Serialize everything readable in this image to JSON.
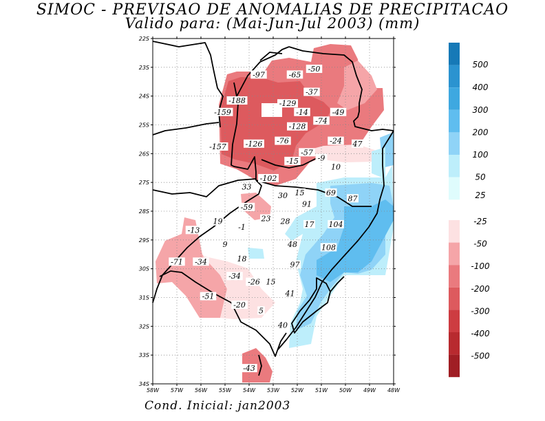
{
  "title": {
    "line1": "SIMOC - PREVISAO DE ANOMALIAS DE PRECIPITACAO",
    "line2": "Valido para: (Mai-Jun-Jul 2003) (mm)"
  },
  "footer": "Cond. Inicial: jan2003",
  "map": {
    "lat_labels": [
      "22S",
      "23S",
      "24S",
      "25S",
      "26S",
      "27S",
      "28S",
      "29S",
      "30S",
      "31S",
      "32S",
      "33S",
      "34S"
    ],
    "lon_labels": [
      "58W",
      "57W",
      "56W",
      "55W",
      "54W",
      "53W",
      "52W",
      "51W",
      "50W",
      "49W",
      "48W"
    ],
    "values": [
      {
        "lon": -53.6,
        "lat": -23.3,
        "text": "-97"
      },
      {
        "lon": -52.1,
        "lat": -23.3,
        "text": "-65"
      },
      {
        "lon": -51.3,
        "lat": -23.1,
        "text": "-50"
      },
      {
        "lon": -51.4,
        "lat": -23.9,
        "text": "-37"
      },
      {
        "lon": -54.5,
        "lat": -24.2,
        "text": "-188"
      },
      {
        "lon": -52.4,
        "lat": -24.3,
        "text": "-129"
      },
      {
        "lon": -55.1,
        "lat": -24.6,
        "text": "-159"
      },
      {
        "lon": -51.8,
        "lat": -24.6,
        "text": "-14"
      },
      {
        "lon": -50.3,
        "lat": -24.6,
        "text": "-49"
      },
      {
        "lon": -51.0,
        "lat": -24.9,
        "text": "-74"
      },
      {
        "lon": -52.0,
        "lat": -25.1,
        "text": "-128"
      },
      {
        "lon": -52.6,
        "lat": -25.6,
        "text": "-76"
      },
      {
        "lon": -50.4,
        "lat": -25.6,
        "text": "-24"
      },
      {
        "lon": -49.5,
        "lat": -25.7,
        "text": "47"
      },
      {
        "lon": -55.3,
        "lat": -25.8,
        "text": "-157"
      },
      {
        "lon": -53.8,
        "lat": -25.7,
        "text": "-126"
      },
      {
        "lon": -51.6,
        "lat": -26.0,
        "text": "-57"
      },
      {
        "lon": -52.2,
        "lat": -26.3,
        "text": "-15"
      },
      {
        "lon": -51.0,
        "lat": -26.2,
        "text": "-9"
      },
      {
        "lon": -50.4,
        "lat": -26.5,
        "text": "10"
      },
      {
        "lon": -53.2,
        "lat": -26.9,
        "text": "-102"
      },
      {
        "lon": -54.1,
        "lat": -27.2,
        "text": "33"
      },
      {
        "lon": -52.6,
        "lat": -27.5,
        "text": "30"
      },
      {
        "lon": -51.9,
        "lat": -27.4,
        "text": "15"
      },
      {
        "lon": -50.6,
        "lat": -27.4,
        "text": "69"
      },
      {
        "lon": -49.7,
        "lat": -27.6,
        "text": "87"
      },
      {
        "lon": -51.6,
        "lat": -27.8,
        "text": "91"
      },
      {
        "lon": -54.1,
        "lat": -27.9,
        "text": "-59"
      },
      {
        "lon": -56.3,
        "lat": -28.7,
        "text": "-13"
      },
      {
        "lon": -55.3,
        "lat": -28.4,
        "text": "19"
      },
      {
        "lon": -53.3,
        "lat": -28.3,
        "text": "23"
      },
      {
        "lon": -52.5,
        "lat": -28.4,
        "text": "28"
      },
      {
        "lon": -54.3,
        "lat": -28.6,
        "text": "-1"
      },
      {
        "lon": -51.5,
        "lat": -28.5,
        "text": "17"
      },
      {
        "lon": -50.4,
        "lat": -28.5,
        "text": "104"
      },
      {
        "lon": -55.0,
        "lat": -29.2,
        "text": "9"
      },
      {
        "lon": -52.2,
        "lat": -29.2,
        "text": "48"
      },
      {
        "lon": -50.7,
        "lat": -29.3,
        "text": "108"
      },
      {
        "lon": -54.3,
        "lat": -29.7,
        "text": "18"
      },
      {
        "lon": -57.0,
        "lat": -29.8,
        "text": "-71"
      },
      {
        "lon": -56.0,
        "lat": -29.8,
        "text": "-34"
      },
      {
        "lon": -52.1,
        "lat": -29.9,
        "text": "97"
      },
      {
        "lon": -54.6,
        "lat": -30.3,
        "text": "-34"
      },
      {
        "lon": -53.8,
        "lat": -30.5,
        "text": "-26"
      },
      {
        "lon": -53.1,
        "lat": -30.5,
        "text": "15"
      },
      {
        "lon": -52.3,
        "lat": -30.9,
        "text": "41"
      },
      {
        "lon": -55.7,
        "lat": -31.0,
        "text": "-51"
      },
      {
        "lon": -54.4,
        "lat": -31.3,
        "text": "-20"
      },
      {
        "lon": -53.5,
        "lat": -31.5,
        "text": "5"
      },
      {
        "lon": -52.6,
        "lat": -32.0,
        "text": "40"
      },
      {
        "lon": -54.0,
        "lat": -33.5,
        "text": "-43"
      }
    ]
  },
  "colorbar": {
    "positive": [
      {
        "label": "500",
        "color": "#1679b7"
      },
      {
        "label": "400",
        "color": "#2b93d0"
      },
      {
        "label": "300",
        "color": "#3ea8e0"
      },
      {
        "label": "200",
        "color": "#5fbdef"
      },
      {
        "label": "100",
        "color": "#8fd3f7"
      },
      {
        "label": "50",
        "color": "#bdeefb"
      },
      {
        "label": "25",
        "color": "#dffcfd"
      }
    ],
    "negative": [
      {
        "label": "-25",
        "color": "#fde1e2"
      },
      {
        "label": "-50",
        "color": "#f5a5a8"
      },
      {
        "label": "-100",
        "color": "#ea7a7e"
      },
      {
        "label": "-200",
        "color": "#dd5a5e"
      },
      {
        "label": "-300",
        "color": "#cd3c41"
      },
      {
        "label": "-400",
        "color": "#b82a2f"
      },
      {
        "label": "-500",
        "color": "#a01e24"
      }
    ]
  }
}
